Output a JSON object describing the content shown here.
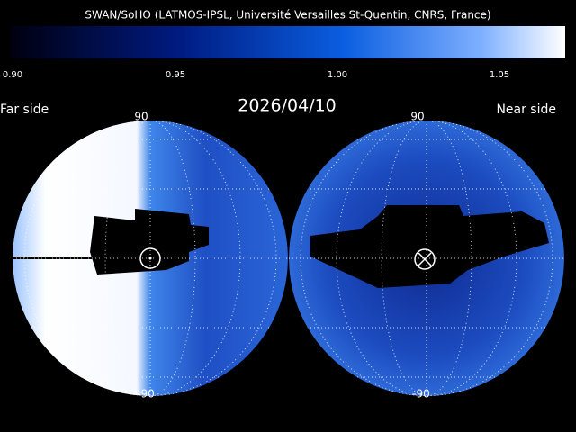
{
  "header": {
    "title": "SWAN/SoHO (LATMOS-IPSL, Université Versailles St-Quentin, CNRS, France)"
  },
  "colorbar": {
    "ticks": [
      "0.90",
      "0.95",
      "1.00",
      "1.05"
    ]
  },
  "date": "2026/04/10",
  "panels": [
    {
      "label": "Far side",
      "top": "90",
      "bottom": "-90"
    },
    {
      "label": "Near side",
      "top": "90",
      "bottom": "-90"
    }
  ]
}
